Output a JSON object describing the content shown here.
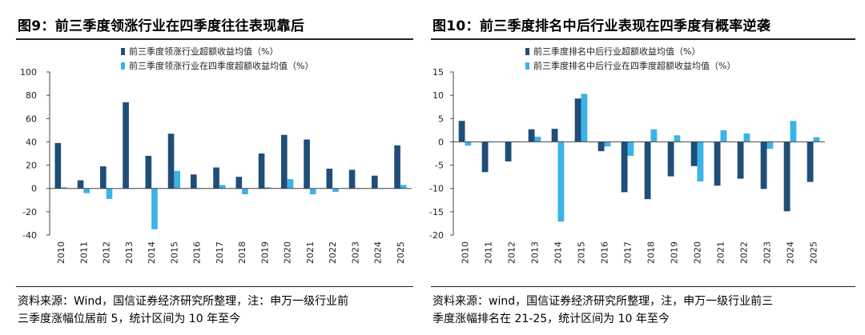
{
  "figures": [
    {
      "title": "图9：前三季度领涨行业在四季度往往表现靠后",
      "source_lines": [
        "资料来源：Wind，国信证券经济研究所整理，注：申万一级行业前",
        "三季度涨幅位居前 5，统计区间为 10 年至今"
      ]
    },
    {
      "title": "图10：前三季度排名中后行业表现在四季度有概率逆袭",
      "source_lines": [
        "资料来源：wind，国信证券经济研究所整理，注，申万一级行业前三",
        "季度涨幅排名在 21-25，统计区间为 10 年至今"
      ]
    }
  ],
  "colors": {
    "dark": "#1f4e79",
    "light": "#3ab4e6"
  },
  "chart_data": [
    {
      "type": "bar",
      "categories": [
        "2010",
        "2011",
        "2012",
        "2013",
        "2014",
        "2015",
        "2016",
        "2017",
        "2018",
        "2019",
        "2020",
        "2021",
        "2022",
        "2023",
        "2024",
        "2025"
      ],
      "series": [
        {
          "name": "前三季度领涨行业超额收益均值（%）",
          "values": [
            39,
            7,
            19,
            74,
            28,
            47,
            12,
            18,
            10,
            30,
            46,
            42,
            17,
            16,
            11,
            37
          ]
        },
        {
          "name": "前三季度领涨行业在四季度超额收益均值（%）",
          "values": [
            1,
            -4,
            -9,
            0,
            -35,
            15,
            0,
            3,
            -5,
            1,
            8,
            -5,
            -3,
            0,
            0,
            3
          ]
        }
      ],
      "ylim": [
        -40,
        100
      ],
      "yticks": [
        -40,
        -20,
        0,
        20,
        40,
        60,
        80,
        100
      ],
      "legend": "top-center"
    },
    {
      "type": "bar",
      "categories": [
        "2010",
        "2011",
        "2012",
        "2013",
        "2014",
        "2015",
        "2016",
        "2017",
        "2018",
        "2019",
        "2020",
        "2021",
        "2022",
        "2023",
        "2024",
        "2025"
      ],
      "series": [
        {
          "name": "前三季度排名中后行业超额收益均值（%）",
          "values": [
            4.5,
            -6.5,
            -4.2,
            2.7,
            2.8,
            9.3,
            -2.0,
            -10.8,
            -12.3,
            -7.4,
            -5.2,
            -9.4,
            -7.9,
            -10.1,
            -14.9,
            -8.6
          ]
        },
        {
          "name": "前三季度排名中后行业在四季度超额收益均值（%）",
          "values": [
            -0.8,
            0,
            -0.1,
            1.1,
            -17.1,
            10.3,
            -1.0,
            -3.0,
            2.7,
            1.4,
            -8.5,
            2.5,
            1.8,
            -1.5,
            4.5,
            1.0
          ]
        }
      ],
      "ylim": [
        -20,
        15
      ],
      "yticks": [
        -20,
        -15,
        -10,
        -5,
        0,
        5,
        10,
        15
      ],
      "legend": "top-center"
    }
  ]
}
